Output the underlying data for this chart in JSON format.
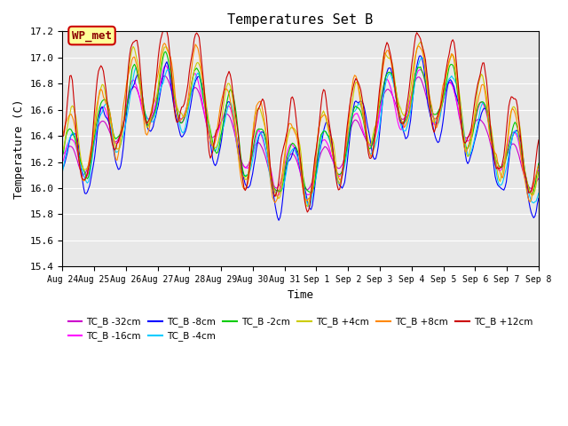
{
  "title": "Temperatures Set B",
  "xlabel": "Time",
  "ylabel": "Temperature (C)",
  "ylim": [
    15.4,
    17.2
  ],
  "yticks": [
    15.4,
    15.6,
    15.8,
    16.0,
    16.2,
    16.4,
    16.6,
    16.8,
    17.0,
    17.2
  ],
  "legend_label": "WP_met",
  "legend_box_color": "#FFFF99",
  "legend_box_edge": "#CC0000",
  "series_labels": [
    "TC_B -32cm",
    "TC_B -16cm",
    "TC_B -8cm",
    "TC_B -4cm",
    "TC_B -2cm",
    "TC_B +4cm",
    "TC_B +8cm",
    "TC_B +12cm"
  ],
  "series_colors": [
    "#CC00CC",
    "#FF00FF",
    "#0000FF",
    "#00CCFF",
    "#00CC00",
    "#CCCC00",
    "#FF8800",
    "#CC0000"
  ],
  "n_points": 384,
  "start_day": 24,
  "background_color": "#E8E8E8"
}
